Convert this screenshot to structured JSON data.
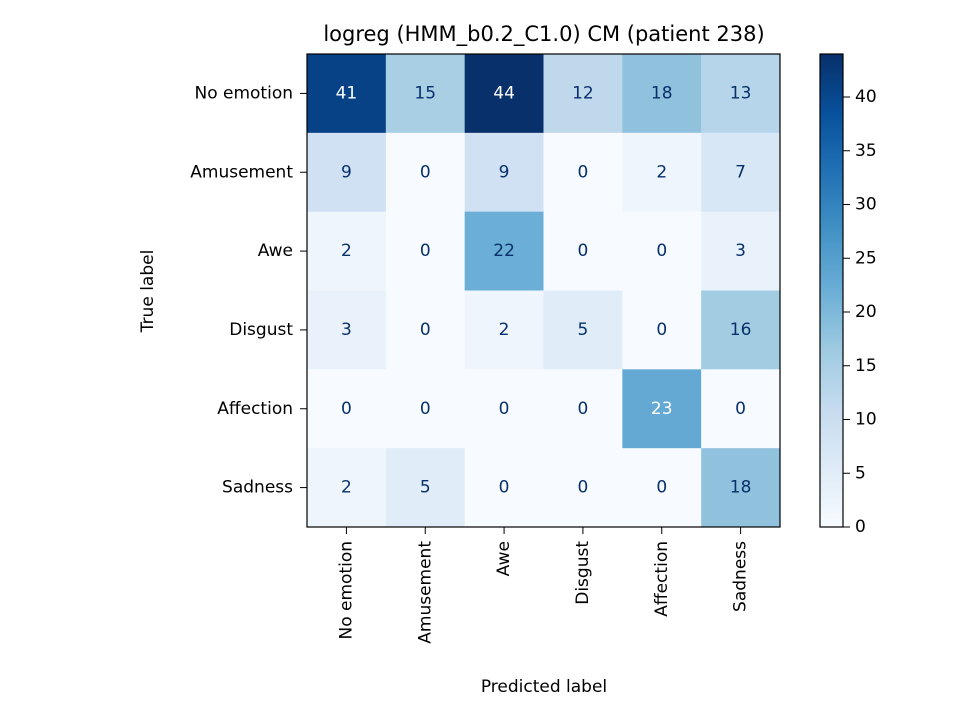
{
  "chart_data": {
    "type": "heatmap",
    "title": "logreg (HMM_b0.2_C1.0) CM (patient 238)",
    "xlabel": "Predicted label",
    "ylabel": "True label",
    "x_categories": [
      "No emotion",
      "Amusement",
      "Awe",
      "Disgust",
      "Affection",
      "Sadness"
    ],
    "y_categories": [
      "No emotion",
      "Amusement",
      "Awe",
      "Disgust",
      "Affection",
      "Sadness"
    ],
    "values": [
      [
        41,
        15,
        44,
        12,
        18,
        13
      ],
      [
        9,
        0,
        9,
        0,
        2,
        7
      ],
      [
        2,
        0,
        22,
        0,
        0,
        3
      ],
      [
        3,
        0,
        2,
        5,
        0,
        16
      ],
      [
        0,
        0,
        0,
        0,
        23,
        0
      ],
      [
        2,
        5,
        0,
        0,
        0,
        18
      ]
    ],
    "colormap": "Blues",
    "colorbar": {
      "range": [
        0,
        44
      ],
      "ticks": [
        0,
        5,
        10,
        15,
        20,
        25,
        30,
        35,
        40
      ]
    },
    "colors": {
      "low": "#f7fbff",
      "high": "#08306b",
      "text_dark": "#08306b",
      "text_light": "#ffffff"
    }
  }
}
